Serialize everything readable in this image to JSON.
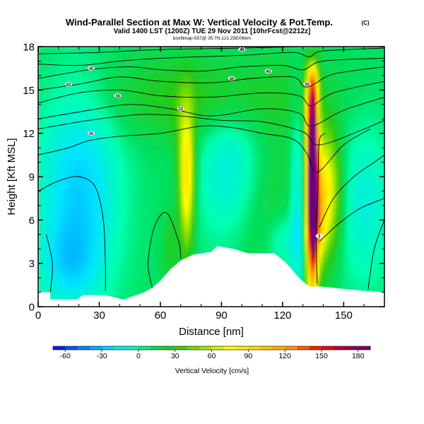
{
  "chart_data": {
    "type": "heatmap",
    "title": "Wind-Parallel Section at Max W: Vertical Velocity & Pot.Temp.",
    "title_mark": "(C)",
    "subtitle": "Valid 1400 LST (1200Z) TUE 29 Nov 2011 [10hrFcst@2212z]",
    "subtitle_small": "boxfilmap-557@ 35.7N,121.25E/06km",
    "xlabel": "Distance [nm]",
    "ylabel": "Height [Kft MSL]",
    "xlim": [
      0,
      170
    ],
    "ylim": [
      0,
      18
    ],
    "xticks": [
      0,
      30,
      60,
      90,
      120,
      150
    ],
    "yticks": [
      0,
      3,
      6,
      9,
      12,
      15,
      18
    ],
    "colorbar": {
      "label": "Vertical Velocity [cm/s]",
      "ticks": [
        -60,
        -30,
        0,
        30,
        60,
        90,
        120,
        150,
        180
      ],
      "range": [
        -70,
        190
      ],
      "stops": [
        {
          "value": -70,
          "color": "#0010c8"
        },
        {
          "value": -60,
          "color": "#0033ff"
        },
        {
          "value": -40,
          "color": "#0099ff"
        },
        {
          "value": -20,
          "color": "#00e4ff"
        },
        {
          "value": 0,
          "color": "#00ffb0"
        },
        {
          "value": 10,
          "color": "#00e060"
        },
        {
          "value": 30,
          "color": "#28c814"
        },
        {
          "value": 50,
          "color": "#8ce000"
        },
        {
          "value": 75,
          "color": "#ffff00"
        },
        {
          "value": 100,
          "color": "#ffd200"
        },
        {
          "value": 125,
          "color": "#ff9600"
        },
        {
          "value": 150,
          "color": "#ff0000"
        },
        {
          "value": 170,
          "color": "#a00040"
        },
        {
          "value": 190,
          "color": "#6a0080"
        }
      ]
    },
    "terrain": [
      [
        0,
        1.0
      ],
      [
        6,
        1.0
      ],
      [
        6,
        0.5
      ],
      [
        19,
        0.5
      ],
      [
        22,
        0.8
      ],
      [
        33,
        0.8
      ],
      [
        42,
        0.5
      ],
      [
        52,
        1.0
      ],
      [
        56,
        1.3
      ],
      [
        60,
        1.8
      ],
      [
        65,
        2.6
      ],
      [
        70,
        3.2
      ],
      [
        76,
        3.6
      ],
      [
        85,
        3.8
      ],
      [
        88,
        4.2
      ],
      [
        96,
        4.0
      ],
      [
        103,
        3.7
      ],
      [
        116,
        3.7
      ],
      [
        122,
        3.0
      ],
      [
        128,
        2.0
      ],
      [
        133,
        1.4
      ],
      [
        138,
        1.4
      ],
      [
        145,
        1.3
      ],
      [
        160,
        1.1
      ],
      [
        170,
        1.0
      ]
    ],
    "background_velocity": 10,
    "velocity_features": [
      {
        "name": "main updraft",
        "x": 134.5,
        "z": 9.5,
        "sx": 2.1,
        "sz": 6.2,
        "amp": 190
      },
      {
        "name": "updraft core",
        "x": 134.8,
        "z": 10.0,
        "sx": 1.0,
        "sz": 4.5,
        "amp": 40
      },
      {
        "name": "secondary updraft",
        "x": 73,
        "z": 8.5,
        "sx": 2.5,
        "sz": 3.2,
        "amp": 75
      },
      {
        "name": "secondary updraft upper",
        "x": 72,
        "z": 11.5,
        "sx": 3.5,
        "sz": 2.5,
        "amp": 20
      },
      {
        "name": "lower updraft",
        "x": 65,
        "z": 4.0,
        "sx": 3.0,
        "sz": 2.0,
        "amp": 15
      },
      {
        "name": "upper green band",
        "x": 85,
        "z": 14.5,
        "sx": 35,
        "sz": 2.0,
        "amp": 22
      },
      {
        "name": "mid green area",
        "x": 110,
        "z": 7.0,
        "sx": 15,
        "sz": 4.0,
        "amp": 15
      },
      {
        "name": "downdraft left",
        "x": 20,
        "z": 8.0,
        "sx": 14,
        "sz": 5.0,
        "amp": -35
      },
      {
        "name": "downdraft left low",
        "x": 15,
        "z": 3.0,
        "sx": 10,
        "sz": 2.0,
        "amp": -20
      },
      {
        "name": "downdraft center",
        "x": 95,
        "z": 9.5,
        "sx": 12,
        "sz": 4.0,
        "amp": -28
      },
      {
        "name": "downdraft right of updraft",
        "x": 128,
        "z": 7.0,
        "sx": 3.0,
        "sz": 5.0,
        "amp": -30
      },
      {
        "name": "downdraft top",
        "x": 134.5,
        "z": 17.6,
        "sx": 1.8,
        "sz": 1.0,
        "amp": -80
      },
      {
        "name": "downdraft low",
        "x": 120,
        "z": 4.5,
        "sx": 6,
        "sz": 1.5,
        "amp": -20
      },
      {
        "name": "downdraft far right",
        "x": 160,
        "z": 7.0,
        "sx": 10,
        "sz": 4.0,
        "amp": -20
      },
      {
        "name": "purple lobe",
        "x": 141,
        "z": 8.0,
        "sx": 5,
        "sz": 3.0,
        "amp": 75
      },
      {
        "name": "purple low",
        "x": 137,
        "z": 5.5,
        "sx": 3,
        "sz": 2.0,
        "amp": 40
      }
    ],
    "isentropes": [
      {
        "label": "",
        "points": [
          [
            0,
            17.5
          ],
          [
            30,
            17.6
          ],
          [
            60,
            17.8
          ],
          [
            100,
            17.9
          ],
          [
            130,
            18.0
          ]
        ]
      },
      {
        "label": "",
        "points": [
          [
            0,
            16.8
          ],
          [
            20,
            16.7
          ],
          [
            40,
            17.0
          ],
          [
            60,
            17.2
          ],
          [
            100,
            17.4
          ],
          [
            125,
            17.6
          ],
          [
            133,
            17.3
          ],
          [
            140,
            17.7
          ],
          [
            170,
            17.9
          ]
        ]
      },
      {
        "label": "",
        "points": [
          [
            0,
            15.8
          ],
          [
            25,
            16.4
          ],
          [
            45,
            16.6
          ],
          [
            60,
            16.4
          ],
          [
            80,
            16.3
          ],
          [
            100,
            16.6
          ],
          [
            120,
            16.7
          ],
          [
            130,
            16.4
          ],
          [
            140,
            17.0
          ],
          [
            170,
            17.2
          ]
        ]
      },
      {
        "label": "",
        "points": [
          [
            0,
            15.0
          ],
          [
            20,
            15.4
          ],
          [
            40,
            15.9
          ],
          [
            60,
            15.6
          ],
          [
            85,
            15.5
          ],
          [
            105,
            15.8
          ],
          [
            125,
            15.9
          ],
          [
            132,
            15.2
          ],
          [
            145,
            16.1
          ],
          [
            170,
            16.6
          ]
        ]
      },
      {
        "label": "",
        "points": [
          [
            0,
            14.1
          ],
          [
            20,
            14.8
          ],
          [
            40,
            15.0
          ],
          [
            60,
            14.6
          ],
          [
            85,
            14.5
          ],
          [
            110,
            14.8
          ],
          [
            128,
            14.6
          ],
          [
            134,
            13.9
          ],
          [
            145,
            14.8
          ],
          [
            170,
            15.6
          ]
        ]
      },
      {
        "label": "",
        "points": [
          [
            0,
            13.0
          ],
          [
            25,
            13.6
          ],
          [
            45,
            14.0
          ],
          [
            65,
            13.7
          ],
          [
            85,
            13.2
          ],
          [
            110,
            13.7
          ],
          [
            128,
            13.4
          ],
          [
            134,
            12.5
          ],
          [
            150,
            13.6
          ],
          [
            170,
            14.5
          ]
        ]
      },
      {
        "label": "",
        "points": [
          [
            0,
            12.3
          ],
          [
            25,
            12.9
          ],
          [
            50,
            13.3
          ],
          [
            70,
            13.2
          ],
          [
            90,
            12.9
          ],
          [
            110,
            12.8
          ],
          [
            130,
            12.1
          ],
          [
            138,
            11.2
          ],
          [
            160,
            12.3
          ],
          [
            170,
            12.9
          ]
        ]
      },
      {
        "label": "",
        "points": [
          [
            0,
            10.5
          ],
          [
            15,
            11.0
          ],
          [
            25,
            11.5
          ],
          [
            40,
            11.8
          ],
          [
            60,
            12.0
          ],
          [
            80,
            12.5
          ],
          [
            95,
            12.4
          ],
          [
            110,
            12.0
          ],
          [
            125,
            11.6
          ],
          [
            132,
            10.6
          ],
          [
            137,
            9.3
          ],
          [
            150,
            11.2
          ],
          [
            163,
            12.3
          ]
        ]
      },
      {
        "label": "",
        "points": [
          [
            138,
            5.5
          ],
          [
            145,
            7.5
          ],
          [
            155,
            9.0
          ],
          [
            165,
            10.0
          ],
          [
            170,
            10.5
          ]
        ]
      },
      {
        "label": "",
        "points": [
          [
            138,
            4.5
          ],
          [
            148,
            5.8
          ],
          [
            158,
            6.8
          ],
          [
            170,
            7.5
          ]
        ]
      },
      {
        "label": "",
        "points": [
          [
            0,
            8.0
          ],
          [
            10,
            8.7
          ],
          [
            20,
            9.0
          ],
          [
            28,
            8.3
          ],
          [
            32,
            6.0
          ],
          [
            33,
            3.0
          ],
          [
            33,
            1.1
          ]
        ]
      },
      {
        "label": "",
        "points": [
          [
            56,
            1.3
          ],
          [
            54,
            3.0
          ],
          [
            57,
            5.5
          ],
          [
            63,
            6.5
          ],
          [
            69,
            4.5
          ],
          [
            70,
            3.3
          ]
        ]
      },
      {
        "label": "",
        "points": [
          [
            137,
            1.6
          ],
          [
            136.5,
            5.0
          ],
          [
            137.5,
            9.0
          ],
          [
            138,
            11.5
          ],
          [
            141,
            12.0
          ]
        ]
      },
      {
        "label": "",
        "points": [
          [
            4,
            5.0
          ],
          [
            7,
            3.0
          ],
          [
            6,
            1.0
          ]
        ]
      },
      {
        "label": "",
        "points": [
          [
            162,
            1.2
          ],
          [
            165,
            4.0
          ],
          [
            170,
            6.0
          ]
        ]
      }
    ],
    "contour_labels": [
      {
        "text": "44",
        "x": 100,
        "z": 17.8
      },
      {
        "text": "45",
        "x": 26,
        "z": 16.5
      },
      {
        "text": "42",
        "x": 15,
        "z": 15.4
      },
      {
        "text": "40",
        "x": 113,
        "z": 16.3
      },
      {
        "text": "40",
        "x": 95,
        "z": 15.8
      },
      {
        "text": "35",
        "x": 132,
        "z": 15.4
      },
      {
        "text": "39",
        "x": 39,
        "z": 14.6
      },
      {
        "text": "32",
        "x": 70,
        "z": 13.7
      },
      {
        "text": "30",
        "x": 26,
        "z": 12.0
      },
      {
        "text": "3",
        "x": 138,
        "z": 4.9
      }
    ]
  }
}
